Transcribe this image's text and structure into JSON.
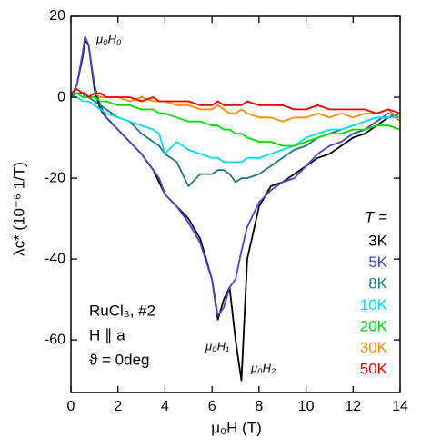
{
  "chart_data": {
    "type": "line",
    "x_label": "μ₀H (T)",
    "y_label": "λc* (10⁻⁶ 1/T)",
    "annotations": [
      "μ₀H₀",
      "μ₀H₁",
      "μ₀H₂",
      "RuCl₃, #2",
      "H ∥ a",
      "ϑ = 0deg",
      "T ="
    ],
    "xlim": [
      0,
      14
    ],
    "ylim": [
      -73,
      20
    ],
    "xticks": [
      0,
      2,
      4,
      6,
      8,
      10,
      12,
      14
    ],
    "yticks": [
      -60,
      -40,
      -20,
      0,
      20
    ],
    "x": [
      0,
      0.25,
      0.5,
      0.6,
      0.75,
      1,
      1.25,
      1.5,
      2,
      2.5,
      3,
      3.5,
      3.75,
      4,
      4.5,
      5,
      5.5,
      6,
      6.25,
      6.5,
      6.75,
      7,
      7.25,
      7.5,
      8,
      8.5,
      9,
      9.5,
      10,
      10.5,
      11,
      11.5,
      12,
      12.5,
      13,
      13.5,
      14
    ],
    "series": [
      {
        "name": "3K",
        "color": "#000000",
        "values": [
          0,
          3,
          10,
          14,
          13,
          2,
          -3,
          -5,
          -8,
          -11,
          -14,
          -18,
          -21,
          -24,
          -27,
          -30,
          -35,
          -45,
          -55,
          -50,
          -47,
          -60,
          -70,
          -40,
          -27,
          -22,
          -21,
          -19,
          -17,
          -15,
          -14,
          -12,
          -10,
          -9,
          -7,
          -5,
          -4
        ]
      },
      {
        "name": "5K",
        "color": "#4444cc",
        "values": [
          0,
          3,
          11,
          15,
          13,
          3,
          -2,
          -5,
          -8,
          -11,
          -14,
          -18,
          -20,
          -24,
          -27,
          -31,
          -36,
          -45,
          -54,
          -52,
          -47,
          -45,
          -38,
          -32,
          -26,
          -23,
          -21,
          -20,
          -17,
          -14,
          -12,
          -11,
          -9,
          -8,
          -6,
          -4,
          -5
        ]
      },
      {
        "name": "8K",
        "color": "#1a7a7a",
        "values": [
          0,
          1,
          1,
          0,
          0,
          -1,
          -2,
          -3,
          -5,
          -6,
          -9,
          -11,
          -12,
          -14,
          -16,
          -22,
          -19,
          -19,
          -18,
          -18,
          -19,
          -21,
          -20,
          -20,
          -19,
          -17,
          -15,
          -13,
          -12,
          -10,
          -9,
          -8,
          -7,
          -6,
          -5,
          -5,
          -4
        ]
      },
      {
        "name": "10K",
        "color": "#00e0f0",
        "values": [
          0,
          0,
          -1,
          -1,
          -1,
          -2,
          -3,
          -4,
          -5,
          -6,
          -7,
          -8,
          -9,
          -14,
          -11,
          -13,
          -14,
          -15,
          -15,
          -16,
          -16,
          -16,
          -16,
          -15,
          -15,
          -14,
          -13,
          -12,
          -10,
          -9,
          -8,
          -8,
          -7,
          -6,
          -5,
          -5,
          -5
        ]
      },
      {
        "name": "20K",
        "color": "#00dd00",
        "values": [
          1,
          1,
          0,
          0,
          0,
          0,
          -1,
          -1,
          -2,
          -2,
          -3,
          -3,
          -4,
          -4,
          -5,
          -6,
          -6,
          -7,
          -7,
          -8,
          -8,
          -9,
          -9,
          -10,
          -11,
          -11,
          -12,
          -12,
          -11,
          -10,
          -9,
          -9,
          -8,
          -8,
          -7,
          -7,
          -8
        ]
      },
      {
        "name": "30K",
        "color": "#ff8c00",
        "values": [
          1,
          2,
          1,
          1,
          0,
          1,
          0,
          0,
          0,
          -1,
          0,
          -1,
          -1,
          -1,
          -2,
          -2,
          -3,
          -3,
          -2,
          -3,
          -4,
          -4,
          -3,
          -4,
          -5,
          -5,
          -6,
          -5,
          -5,
          -4,
          -5,
          -4,
          -5,
          -4,
          -4,
          -3,
          -6
        ]
      },
      {
        "name": "50K",
        "color": "#ee0000",
        "values": [
          1,
          2,
          1,
          1,
          0,
          1,
          1,
          0,
          0,
          0,
          -1,
          0,
          -1,
          -1,
          -1,
          -1,
          -2,
          -2,
          -1,
          -2,
          -2,
          -2,
          -2,
          -1,
          -2,
          -2,
          -2,
          -3,
          -3,
          -2,
          -3,
          -3,
          -3,
          -3,
          -4,
          -3,
          -4
        ]
      }
    ]
  }
}
